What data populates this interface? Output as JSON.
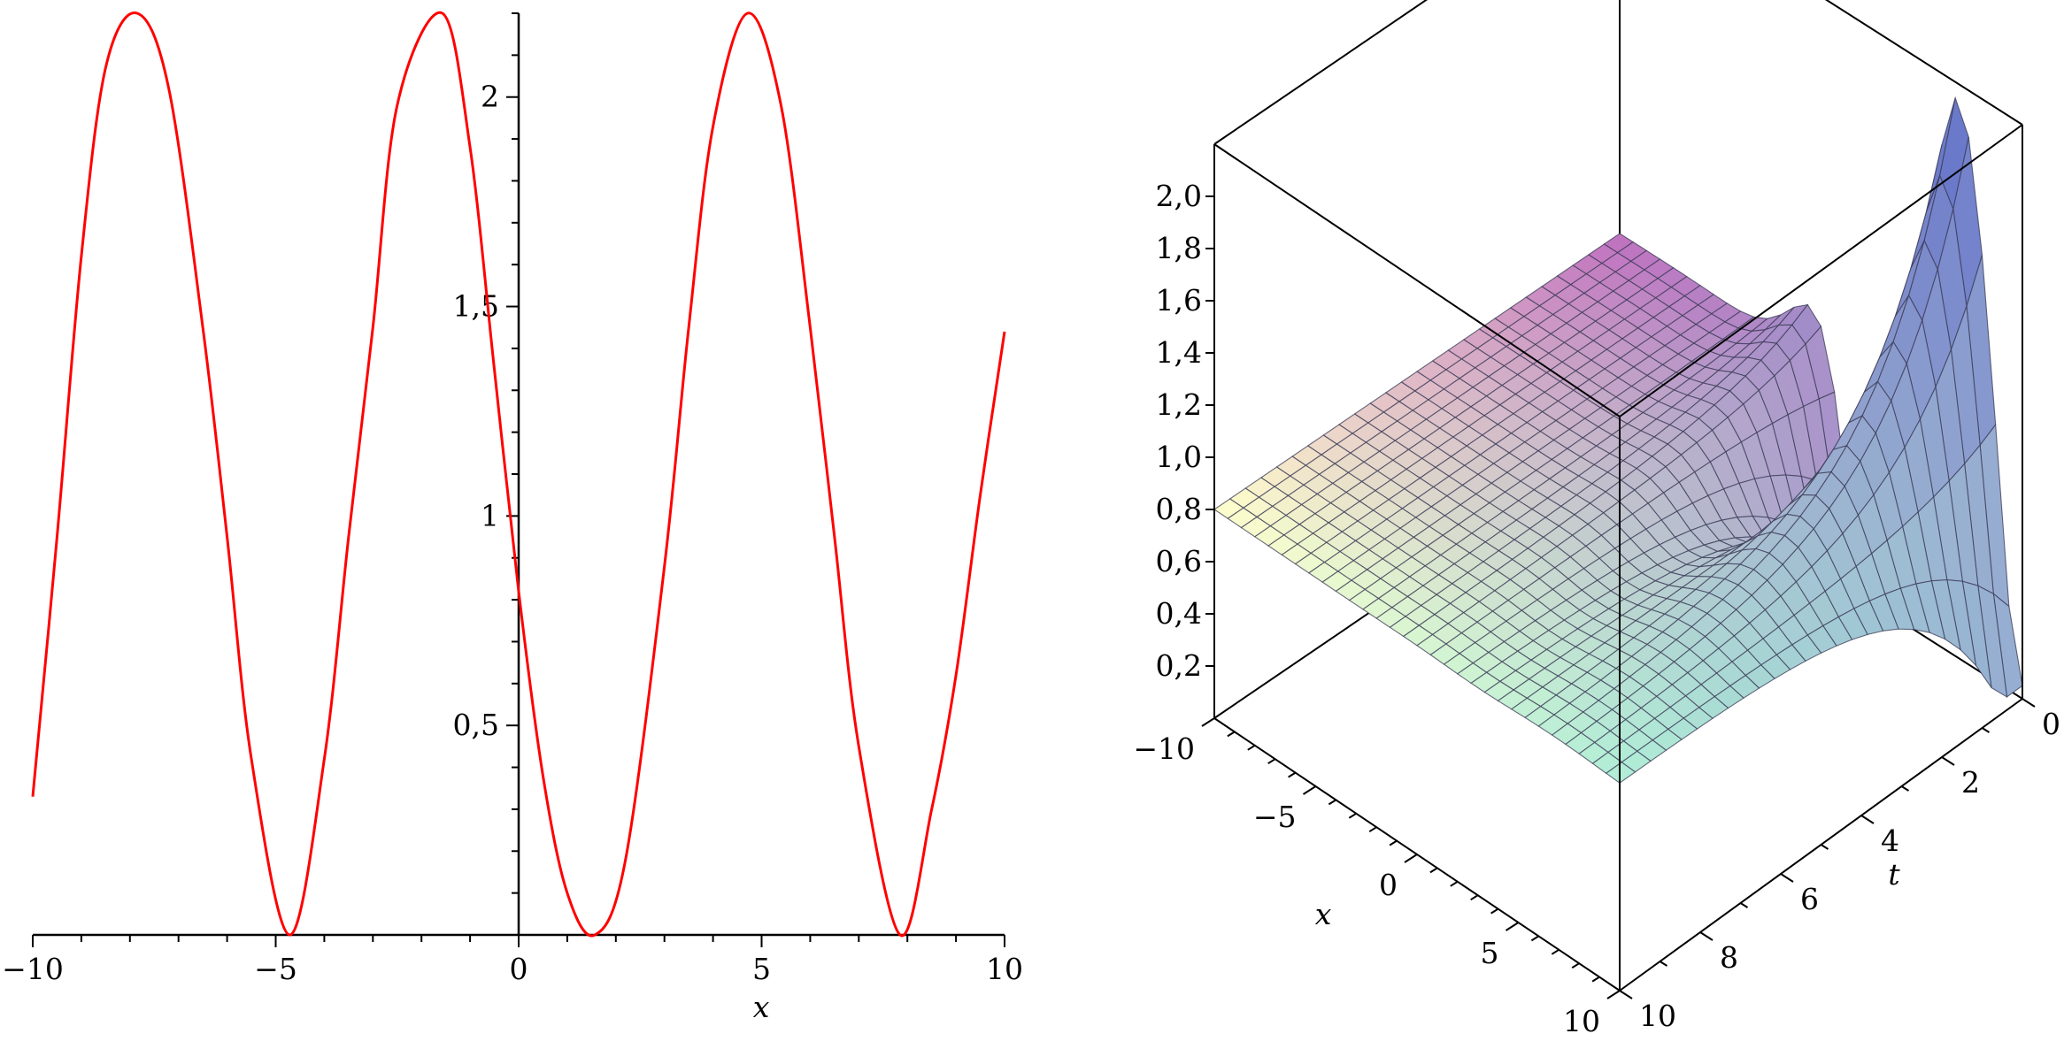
{
  "chart_data": [
    {
      "type": "line",
      "xlabel": "x",
      "ylabel": "",
      "xlim": [
        -10,
        10
      ],
      "ylim": [
        0,
        2.2
      ],
      "x_ticks": [
        "−10",
        "−5",
        "0",
        "5",
        "10"
      ],
      "y_ticks": [
        "0,5",
        "1",
        "1,5",
        "2"
      ],
      "series": [
        {
          "color": "#ff0000",
          "points": [
            [
              -10,
              0.33
            ],
            [
              -9.5,
              0.95
            ],
            [
              -9,
              1.62
            ],
            [
              -8.5,
              2.07
            ],
            [
              -7.85,
              2.2
            ],
            [
              -7.2,
              2.02
            ],
            [
              -6.5,
              1.45
            ],
            [
              -6,
              0.95
            ],
            [
              -5.5,
              0.42
            ],
            [
              -4.71,
              0.0
            ],
            [
              -4,
              0.42
            ],
            [
              -3.5,
              0.95
            ],
            [
              -3,
              1.45
            ],
            [
              -2.5,
              1.98
            ],
            [
              -1.57,
              2.2
            ],
            [
              -1,
              1.88
            ],
            [
              -0.5,
              1.35
            ],
            [
              0,
              0.82
            ],
            [
              0.5,
              0.38
            ],
            [
              1.0,
              0.1
            ],
            [
              1.57,
              0.0
            ],
            [
              2.2,
              0.18
            ],
            [
              3,
              0.88
            ],
            [
              3.5,
              1.45
            ],
            [
              4,
              1.93
            ],
            [
              4.71,
              2.2
            ],
            [
              5.4,
              1.98
            ],
            [
              6,
              1.45
            ],
            [
              6.5,
              0.95
            ],
            [
              7,
              0.45
            ],
            [
              7.85,
              0.0
            ],
            [
              8.5,
              0.3
            ],
            [
              9,
              0.62
            ],
            [
              9.5,
              1.05
            ],
            [
              10,
              1.44
            ]
          ]
        }
      ]
    },
    {
      "type": "surface",
      "xlabel": "x",
      "tlabel": "t",
      "x_ticks": [
        "−10",
        "−5",
        "0",
        "5",
        "10"
      ],
      "t_ticks": [
        "0",
        "2",
        "4",
        "6",
        "8",
        "10"
      ],
      "z_ticks": [
        "0,2",
        "0,4",
        "0,6",
        "0,8",
        "1,0",
        "1,2",
        "1,4",
        "1,6",
        "1,8",
        "2,0"
      ],
      "xlim": [
        -10,
        10
      ],
      "tlim": [
        0,
        10
      ],
      "zlim": [
        0,
        2.2
      ],
      "colors": {
        "low": "#ffffcc",
        "mid": "#c070c0",
        "high": "#6070c8",
        "edge_high": "#70e0e0"
      }
    }
  ]
}
